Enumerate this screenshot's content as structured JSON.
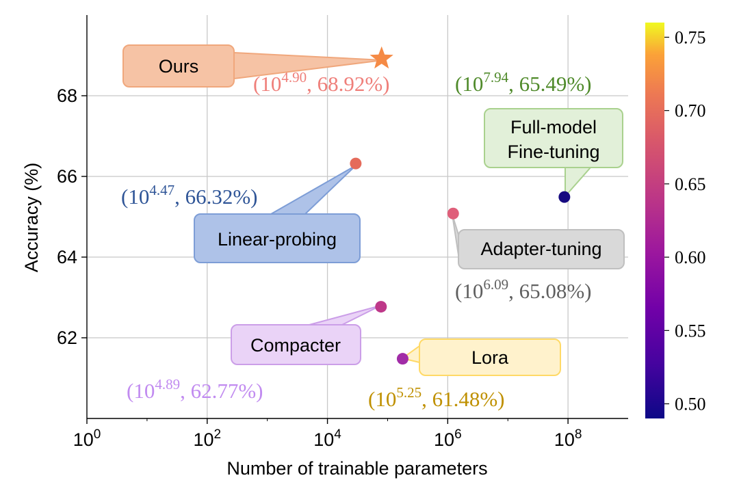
{
  "chart_data": {
    "type": "scatter",
    "xscale": "log10",
    "xlim_exp": [
      0,
      9
    ],
    "ylim": [
      60,
      70
    ],
    "xticks_exp": [
      0,
      2,
      4,
      6,
      8
    ],
    "yticks": [
      62,
      64,
      66,
      68
    ],
    "xlabel": "Number of trainable parameters",
    "ylabel": "Accuracy (%)",
    "grid": true,
    "colorbar": {
      "min": 0.49,
      "max": 0.76,
      "ticks": [
        "0.50",
        "0.55",
        "0.60",
        "0.65",
        "0.70",
        "0.75"
      ]
    },
    "points": [
      {
        "name": "Ours",
        "x_exp": 4.9,
        "x_exp_label": "4.90",
        "y": 68.92,
        "y_label": "68.92%",
        "marker": "star",
        "color": "#f58a45",
        "box_fill": "#f6c3a5",
        "box_stroke": "#f0a77c",
        "coord_color": "#ef7f7a"
      },
      {
        "name": "Linear-probing",
        "x_exp": 4.47,
        "x_exp_label": "4.47",
        "y": 66.32,
        "y_label": "66.32%",
        "marker": "circle",
        "color": "#e56b5b",
        "box_fill": "#aec2e8",
        "box_stroke": "#7d9dd6",
        "coord_color": "#2f5597"
      },
      {
        "name": "Full-model Fine-tuning",
        "x_exp": 7.94,
        "x_exp_label": "7.94",
        "y": 65.49,
        "y_label": "65.49%",
        "marker": "circle",
        "color": "#160a80",
        "box_fill": "#e2f0d9",
        "box_stroke": "#a9d18e",
        "coord_color": "#4f8a2a"
      },
      {
        "name": "Adapter-tuning",
        "x_exp": 6.09,
        "x_exp_label": "6.09",
        "y": 65.08,
        "y_label": "65.08%",
        "marker": "circle",
        "color": "#df5f7a",
        "box_fill": "#d9d9d9",
        "box_stroke": "#bfbfbf",
        "coord_color": "#5f5f5f"
      },
      {
        "name": "Compacter",
        "x_exp": 4.89,
        "x_exp_label": "4.89",
        "y": 62.77,
        "y_label": "62.77%",
        "marker": "circle",
        "color": "#be3889",
        "box_fill": "#ead3f7",
        "box_stroke": "#cb9ee8",
        "coord_color": "#c18bf0"
      },
      {
        "name": "Lora",
        "x_exp": 5.25,
        "x_exp_label": "5.25",
        "y": 61.48,
        "y_label": "61.48%",
        "marker": "circle",
        "color": "#a12ca7",
        "box_fill": "#fff2cc",
        "box_stroke": "#ffd966",
        "coord_color": "#bf9000"
      }
    ]
  }
}
